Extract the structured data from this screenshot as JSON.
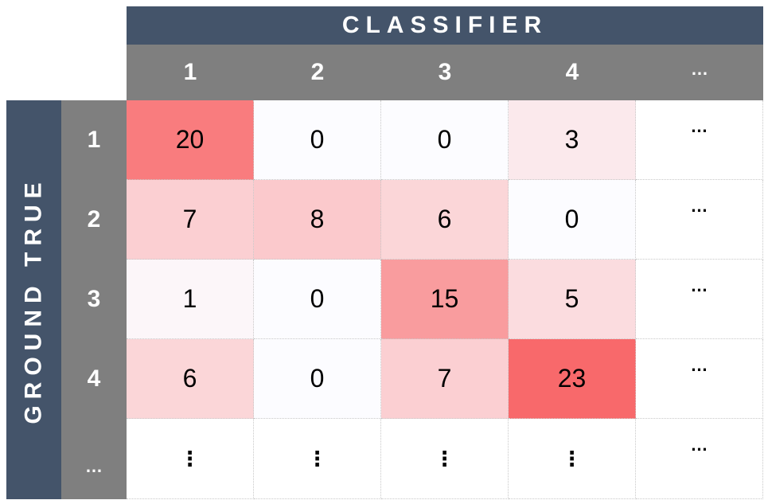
{
  "chart_data": {
    "type": "heatmap",
    "x_title": "CLASSIFIER",
    "y_title": "GROUND TRUE",
    "x_labels": [
      "1",
      "2",
      "3",
      "4",
      "…"
    ],
    "y_labels": [
      "1",
      "2",
      "3",
      "4",
      "…"
    ],
    "values": [
      [
        20,
        0,
        0,
        3
      ],
      [
        7,
        8,
        6,
        0
      ],
      [
        1,
        0,
        15,
        5
      ],
      [
        6,
        0,
        7,
        23
      ]
    ],
    "ellipsis_row": [
      "⋮",
      "⋮",
      "⋮",
      "⋮"
    ],
    "ellipsis_col": "…",
    "colorscale": {
      "low": "#fcfcff",
      "high": "#f8696b"
    }
  }
}
